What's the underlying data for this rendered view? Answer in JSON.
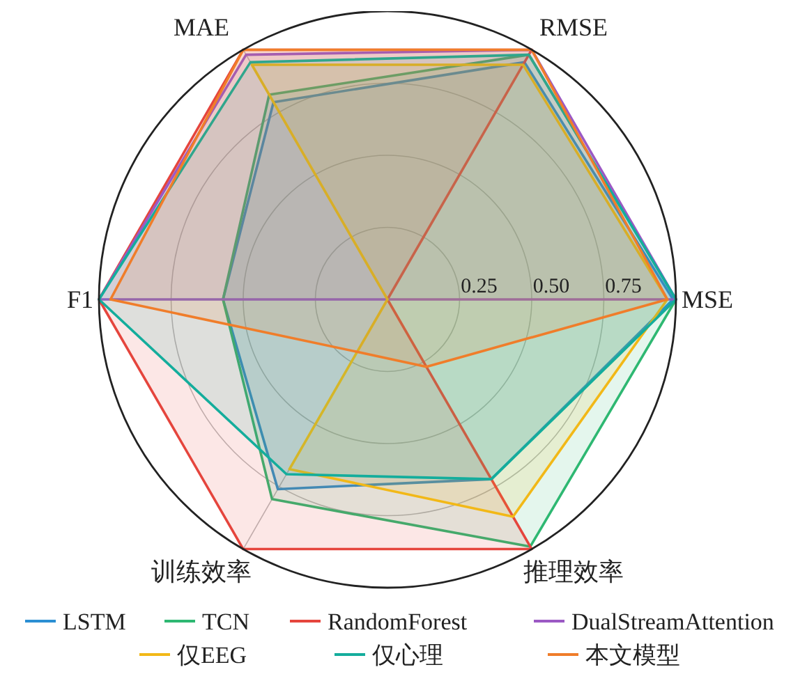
{
  "chart_data": {
    "type": "radar",
    "categories": [
      "RMSE",
      "MSE",
      "推理效率",
      "训练效率",
      "F1",
      "MAE"
    ],
    "ylim": [
      0,
      1
    ],
    "yticks": [
      {
        "value": 0.25,
        "label": "0.25"
      },
      {
        "value": 0.5,
        "label": "0.50"
      },
      {
        "value": 0.75,
        "label": "0.75"
      }
    ],
    "grid": true,
    "legend": "bottom",
    "series": [
      {
        "name": "LSTM",
        "color": "#2b8fd3",
        "values": [
          0.95,
          0.99,
          0.72,
          0.76,
          0.57,
          0.79
        ]
      },
      {
        "name": "TCN",
        "color": "#2eb872",
        "values": [
          0.98,
          1.0,
          0.99,
          0.8,
          0.57,
          0.82
        ]
      },
      {
        "name": "RandomForest",
        "color": "#e5453d",
        "values": [
          1,
          0,
          1,
          1,
          1,
          1
        ]
      },
      {
        "name": "DualStreamAttention",
        "color": "#9b59c4",
        "values": [
          1,
          1,
          0,
          0,
          1,
          0.98
        ]
      },
      {
        "name": "仅EEG",
        "color": "#f2b817",
        "values": [
          0.94,
          0.97,
          0.87,
          0.68,
          0,
          0.94
        ]
      },
      {
        "name": "仅心理",
        "color": "#14ad9c",
        "values": [
          0.98,
          1.0,
          0.72,
          0.7,
          1.0,
          0.95
        ]
      },
      {
        "name": "本文模型",
        "color": "#f07d2a",
        "values": [
          1,
          0.97,
          0.27,
          0.21,
          0.96,
          1
        ]
      }
    ]
  }
}
